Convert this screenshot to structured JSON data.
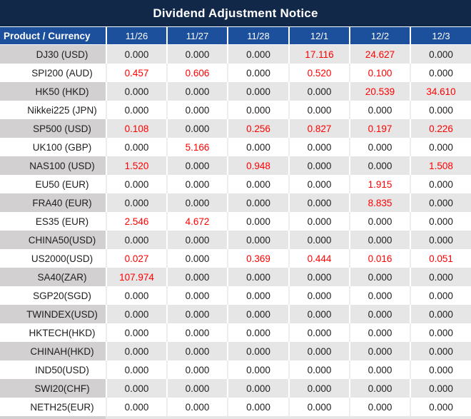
{
  "title": "Dividend Adjustment Notice",
  "colors": {
    "title_bg": "#112849",
    "header_bg": "#1C4F9C",
    "row_alt_bg": "#E7E6E6",
    "label_alt_bg": "#D2D0D0",
    "value_zero_color": "#202020",
    "value_nonzero_color": "#FF0000"
  },
  "table": {
    "columns": [
      "Product / Currency",
      "11/26",
      "11/27",
      "11/28",
      "12/1",
      "12/2",
      "12/3"
    ],
    "rows": [
      {
        "product": "DJ30 (USD)",
        "values": [
          "0.000",
          "0.000",
          "0.000",
          "17.116",
          "24.627",
          "0.000"
        ]
      },
      {
        "product": "SPI200 (AUD)",
        "values": [
          "0.457",
          "0.606",
          "0.000",
          "0.520",
          "0.100",
          "0.000"
        ]
      },
      {
        "product": "HK50 (HKD)",
        "values": [
          "0.000",
          "0.000",
          "0.000",
          "0.000",
          "20.539",
          "34.610"
        ]
      },
      {
        "product": "Nikkei225 (JPN)",
        "values": [
          "0.000",
          "0.000",
          "0.000",
          "0.000",
          "0.000",
          "0.000"
        ]
      },
      {
        "product": "SP500 (USD)",
        "values": [
          "0.108",
          "0.000",
          "0.256",
          "0.827",
          "0.197",
          "0.226"
        ]
      },
      {
        "product": "UK100 (GBP)",
        "values": [
          "0.000",
          "5.166",
          "0.000",
          "0.000",
          "0.000",
          "0.000"
        ]
      },
      {
        "product": "NAS100 (USD)",
        "values": [
          "1.520",
          "0.000",
          "0.948",
          "0.000",
          "0.000",
          "1.508"
        ]
      },
      {
        "product": "EU50 (EUR)",
        "values": [
          "0.000",
          "0.000",
          "0.000",
          "0.000",
          "1.915",
          "0.000"
        ]
      },
      {
        "product": "FRA40 (EUR)",
        "values": [
          "0.000",
          "0.000",
          "0.000",
          "0.000",
          "8.835",
          "0.000"
        ]
      },
      {
        "product": "ES35 (EUR)",
        "values": [
          "2.546",
          "4.672",
          "0.000",
          "0.000",
          "0.000",
          "0.000"
        ]
      },
      {
        "product": "CHINA50(USD)",
        "values": [
          "0.000",
          "0.000",
          "0.000",
          "0.000",
          "0.000",
          "0.000"
        ]
      },
      {
        "product": "US2000(USD)",
        "values": [
          "0.027",
          "0.000",
          "0.369",
          "0.444",
          "0.016",
          "0.051"
        ]
      },
      {
        "product": "SA40(ZAR)",
        "values": [
          "107.974",
          "0.000",
          "0.000",
          "0.000",
          "0.000",
          "0.000"
        ]
      },
      {
        "product": "SGP20(SGD)",
        "values": [
          "0.000",
          "0.000",
          "0.000",
          "0.000",
          "0.000",
          "0.000"
        ]
      },
      {
        "product": "TWINDEX(USD)",
        "values": [
          "0.000",
          "0.000",
          "0.000",
          "0.000",
          "0.000",
          "0.000"
        ]
      },
      {
        "product": "HKTECH(HKD)",
        "values": [
          "0.000",
          "0.000",
          "0.000",
          "0.000",
          "0.000",
          "0.000"
        ]
      },
      {
        "product": "CHINAH(HKD)",
        "values": [
          "0.000",
          "0.000",
          "0.000",
          "0.000",
          "0.000",
          "0.000"
        ]
      },
      {
        "product": "IND50(USD)",
        "values": [
          "0.000",
          "0.000",
          "0.000",
          "0.000",
          "0.000",
          "0.000"
        ]
      },
      {
        "product": "SWI20(CHF)",
        "values": [
          "0.000",
          "0.000",
          "0.000",
          "0.000",
          "0.000",
          "0.000"
        ]
      },
      {
        "product": "NETH25(EUR)",
        "values": [
          "0.000",
          "0.000",
          "0.000",
          "0.000",
          "0.000",
          "0.000"
        ]
      }
    ]
  }
}
